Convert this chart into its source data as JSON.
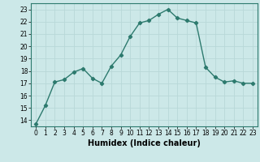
{
  "x": [
    0,
    1,
    2,
    3,
    4,
    5,
    6,
    7,
    8,
    9,
    10,
    11,
    12,
    13,
    14,
    15,
    16,
    17,
    18,
    19,
    20,
    21,
    22,
    23
  ],
  "y": [
    13.7,
    15.2,
    17.1,
    17.3,
    17.9,
    18.2,
    17.4,
    17.0,
    18.4,
    19.3,
    20.8,
    21.9,
    22.1,
    22.6,
    23.0,
    22.3,
    22.1,
    21.9,
    18.3,
    17.5,
    17.1,
    17.2,
    17.0,
    17.0
  ],
  "line_color": "#2d7a6e",
  "marker": "D",
  "marker_size": 2.2,
  "bg_color": "#cce8e8",
  "grid_color": "#b8d8d8",
  "xlabel": "Humidex (Indice chaleur)",
  "xlim": [
    -0.5,
    23.5
  ],
  "ylim": [
    13.5,
    23.5
  ],
  "yticks": [
    14,
    15,
    16,
    17,
    18,
    19,
    20,
    21,
    22,
    23
  ],
  "xticks": [
    0,
    1,
    2,
    3,
    4,
    5,
    6,
    7,
    8,
    9,
    10,
    11,
    12,
    13,
    14,
    15,
    16,
    17,
    18,
    19,
    20,
    21,
    22,
    23
  ],
  "tick_fontsize": 5.5,
  "xlabel_fontsize": 7.0,
  "line_width": 1.0
}
